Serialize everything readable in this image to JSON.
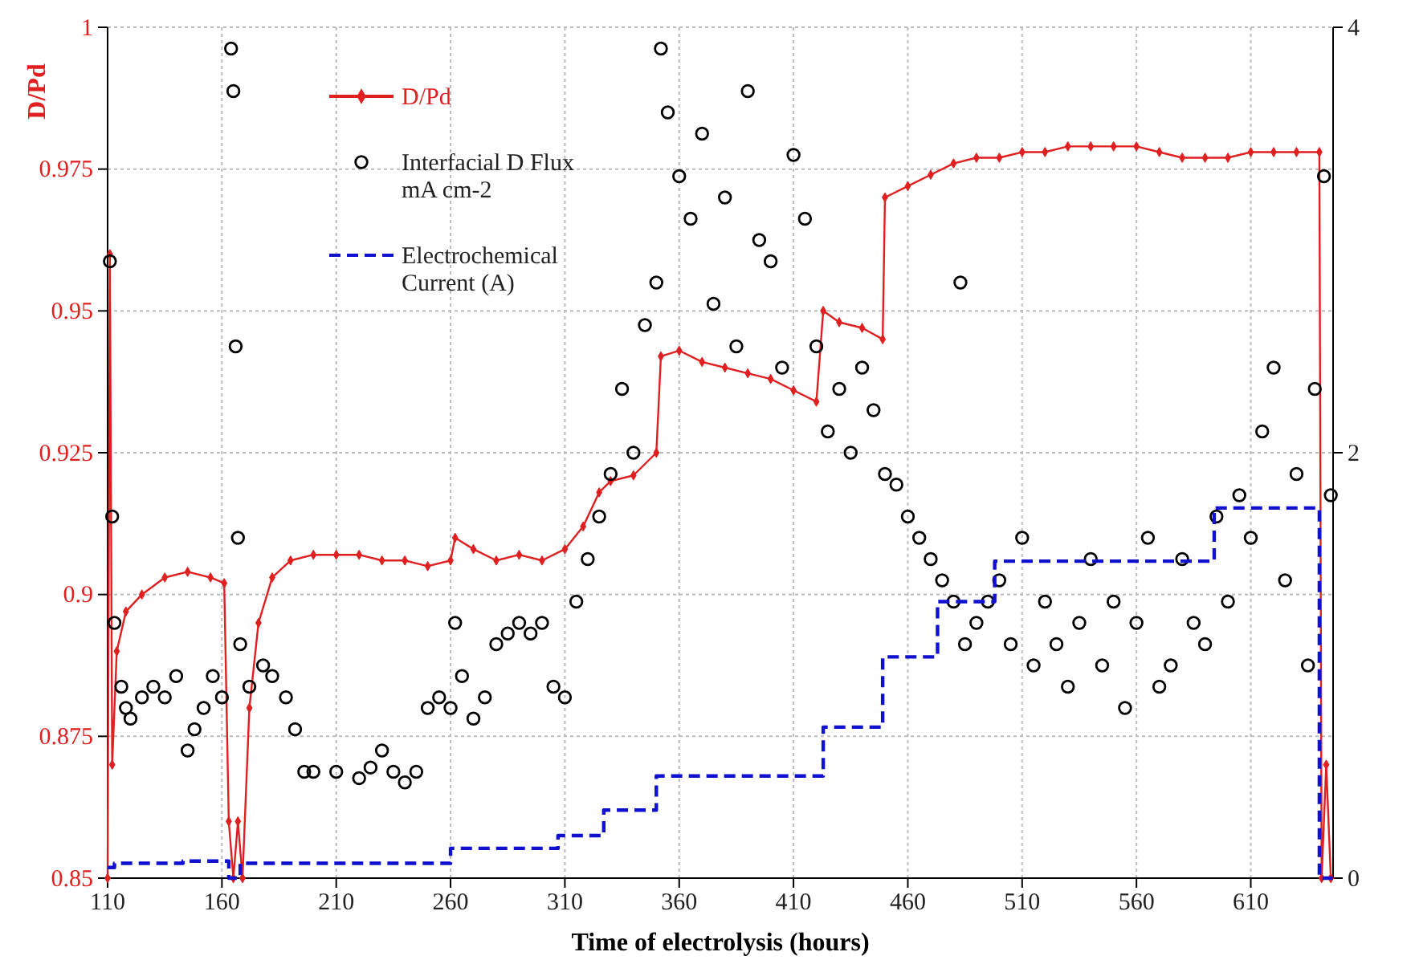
{
  "chart_data": {
    "type": "line",
    "xlabel": "Time of electrolysis (hours)",
    "ylabel": "D/Pd",
    "xlim": [
      110,
      646
    ],
    "xticks": [
      110,
      160,
      210,
      260,
      310,
      360,
      410,
      460,
      510,
      560,
      610
    ],
    "ylim": [
      0.85,
      1
    ],
    "yticks": [
      0.85,
      0.875,
      0.9,
      0.925,
      0.95,
      0.975,
      1
    ],
    "y2lim": [
      0,
      4
    ],
    "y2ticks": [
      0,
      2,
      4
    ],
    "grid": true,
    "legend": "top left",
    "series": [
      {
        "name": "D/Pd",
        "color": "#e02020",
        "marker": "diamond",
        "line_style": "solid",
        "x": [
          110,
          111,
          112,
          114,
          118,
          125,
          135,
          145,
          155,
          161,
          163,
          165,
          167,
          169,
          172,
          176,
          182,
          190,
          200,
          210,
          220,
          230,
          240,
          250,
          260,
          262,
          270,
          280,
          290,
          300,
          310,
          318,
          325,
          330,
          340,
          350,
          352,
          360,
          370,
          380,
          390,
          400,
          410,
          420,
          423,
          430,
          440,
          449,
          450,
          460,
          470,
          480,
          490,
          500,
          510,
          520,
          530,
          540,
          550,
          560,
          570,
          580,
          590,
          600,
          610,
          620,
          630,
          640,
          641,
          643,
          645
        ],
        "values": [
          0.85,
          0.96,
          0.87,
          0.89,
          0.897,
          0.9,
          0.903,
          0.904,
          0.903,
          0.902,
          0.86,
          0.85,
          0.86,
          0.85,
          0.88,
          0.895,
          0.903,
          0.906,
          0.907,
          0.907,
          0.907,
          0.906,
          0.906,
          0.905,
          0.906,
          0.91,
          0.908,
          0.906,
          0.907,
          0.906,
          0.908,
          0.912,
          0.918,
          0.92,
          0.921,
          0.925,
          0.942,
          0.943,
          0.941,
          0.94,
          0.939,
          0.938,
          0.936,
          0.934,
          0.95,
          0.948,
          0.947,
          0.945,
          0.97,
          0.972,
          0.974,
          0.976,
          0.977,
          0.977,
          0.978,
          0.978,
          0.979,
          0.979,
          0.979,
          0.979,
          0.978,
          0.977,
          0.977,
          0.977,
          0.978,
          0.978,
          0.978,
          0.978,
          0.85,
          0.87,
          0.85
        ]
      },
      {
        "name": "Interfacial D Flux mA cm-2",
        "type": "scatter",
        "axis": "y2",
        "color": "#000000",
        "marker": "circle",
        "x": [
          111,
          112,
          113,
          116,
          118,
          120,
          125,
          130,
          135,
          140,
          145,
          148,
          152,
          156,
          160,
          164,
          165,
          166,
          167,
          168,
          172,
          178,
          182,
          188,
          192,
          196,
          200,
          210,
          220,
          225,
          230,
          235,
          240,
          245,
          250,
          255,
          260,
          262,
          265,
          270,
          275,
          280,
          285,
          290,
          295,
          300,
          305,
          310,
          315,
          320,
          325,
          330,
          335,
          340,
          345,
          350,
          352,
          355,
          360,
          365,
          370,
          375,
          380,
          385,
          390,
          395,
          400,
          405,
          410,
          415,
          420,
          425,
          430,
          435,
          440,
          445,
          450,
          455,
          460,
          465,
          470,
          475,
          480,
          483,
          485,
          490,
          495,
          500,
          505,
          510,
          515,
          520,
          525,
          530,
          535,
          540,
          545,
          550,
          555,
          560,
          565,
          570,
          575,
          580,
          585,
          590,
          595,
          600,
          605,
          610,
          615,
          620,
          625,
          630,
          635,
          638,
          642,
          645
        ],
        "values": [
          2.9,
          1.7,
          1.2,
          0.9,
          0.8,
          0.75,
          0.85,
          0.9,
          0.85,
          0.95,
          0.6,
          0.7,
          0.8,
          0.95,
          0.85,
          3.9,
          3.7,
          2.5,
          1.6,
          1.1,
          0.9,
          1.0,
          0.95,
          0.85,
          0.7,
          0.5,
          0.5,
          0.5,
          0.47,
          0.52,
          0.6,
          0.5,
          0.45,
          0.5,
          0.8,
          0.85,
          0.8,
          1.2,
          0.95,
          0.75,
          0.85,
          1.1,
          1.15,
          1.2,
          1.15,
          1.2,
          0.9,
          0.85,
          1.3,
          1.5,
          1.7,
          1.9,
          2.3,
          2.0,
          2.6,
          2.8,
          3.9,
          3.6,
          3.3,
          3.1,
          3.5,
          2.7,
          3.2,
          2.5,
          3.7,
          3.0,
          2.9,
          2.4,
          3.4,
          3.1,
          2.5,
          2.1,
          2.3,
          2.0,
          2.4,
          2.2,
          1.9,
          1.85,
          1.7,
          1.6,
          1.5,
          1.4,
          1.3,
          2.8,
          1.1,
          1.2,
          1.3,
          1.4,
          1.1,
          1.6,
          1.0,
          1.3,
          1.1,
          0.9,
          1.2,
          1.5,
          1.0,
          1.3,
          0.8,
          1.2,
          1.6,
          0.9,
          1.0,
          1.5,
          1.2,
          1.1,
          1.7,
          1.3,
          1.8,
          1.6,
          2.1,
          2.4,
          1.4,
          1.9,
          1.0,
          2.3,
          3.3,
          1.8
        ]
      },
      {
        "name": "Electrochemical Current (A)",
        "type": "step",
        "axis": "y2",
        "color": "#1010d0",
        "line_style": "dashed",
        "marker": "none",
        "x": [
          110,
          113,
          143,
          163,
          168,
          260,
          307,
          327,
          350,
          423,
          449,
          473,
          498,
          594,
          640,
          646
        ],
        "values": [
          0.05,
          0.07,
          0.08,
          0,
          0.07,
          0.14,
          0.2,
          0.32,
          0.48,
          0.71,
          1.04,
          1.3,
          1.49,
          1.74,
          0,
          0
        ]
      }
    ]
  }
}
